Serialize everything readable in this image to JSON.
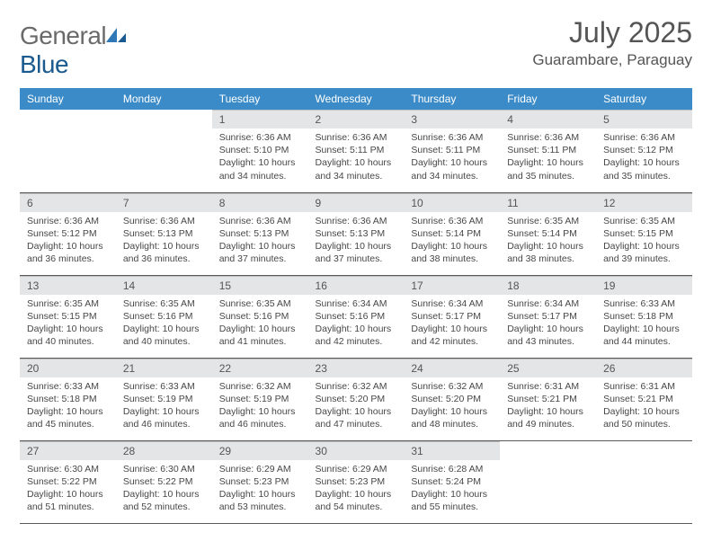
{
  "logo": {
    "word1": "General",
    "word2": "Blue"
  },
  "title": "July 2025",
  "location": "Guarambare, Paraguay",
  "weekdays": [
    "Sunday",
    "Monday",
    "Tuesday",
    "Wednesday",
    "Thursday",
    "Friday",
    "Saturday"
  ],
  "colors": {
    "header_bg": "#3b8bc8",
    "header_text": "#ffffff",
    "daynum_bg": "#e3e5e7",
    "logo_gray": "#6a6a6a",
    "logo_blue": "#1b5a8f",
    "body_text": "#474747"
  },
  "days": [
    {
      "n": "",
      "sr": "",
      "ss": "",
      "dl": ""
    },
    {
      "n": "",
      "sr": "",
      "ss": "",
      "dl": ""
    },
    {
      "n": "1",
      "sr": "Sunrise: 6:36 AM",
      "ss": "Sunset: 5:10 PM",
      "dl": "Daylight: 10 hours and 34 minutes."
    },
    {
      "n": "2",
      "sr": "Sunrise: 6:36 AM",
      "ss": "Sunset: 5:11 PM",
      "dl": "Daylight: 10 hours and 34 minutes."
    },
    {
      "n": "3",
      "sr": "Sunrise: 6:36 AM",
      "ss": "Sunset: 5:11 PM",
      "dl": "Daylight: 10 hours and 34 minutes."
    },
    {
      "n": "4",
      "sr": "Sunrise: 6:36 AM",
      "ss": "Sunset: 5:11 PM",
      "dl": "Daylight: 10 hours and 35 minutes."
    },
    {
      "n": "5",
      "sr": "Sunrise: 6:36 AM",
      "ss": "Sunset: 5:12 PM",
      "dl": "Daylight: 10 hours and 35 minutes."
    },
    {
      "n": "6",
      "sr": "Sunrise: 6:36 AM",
      "ss": "Sunset: 5:12 PM",
      "dl": "Daylight: 10 hours and 36 minutes."
    },
    {
      "n": "7",
      "sr": "Sunrise: 6:36 AM",
      "ss": "Sunset: 5:13 PM",
      "dl": "Daylight: 10 hours and 36 minutes."
    },
    {
      "n": "8",
      "sr": "Sunrise: 6:36 AM",
      "ss": "Sunset: 5:13 PM",
      "dl": "Daylight: 10 hours and 37 minutes."
    },
    {
      "n": "9",
      "sr": "Sunrise: 6:36 AM",
      "ss": "Sunset: 5:13 PM",
      "dl": "Daylight: 10 hours and 37 minutes."
    },
    {
      "n": "10",
      "sr": "Sunrise: 6:36 AM",
      "ss": "Sunset: 5:14 PM",
      "dl": "Daylight: 10 hours and 38 minutes."
    },
    {
      "n": "11",
      "sr": "Sunrise: 6:35 AM",
      "ss": "Sunset: 5:14 PM",
      "dl": "Daylight: 10 hours and 38 minutes."
    },
    {
      "n": "12",
      "sr": "Sunrise: 6:35 AM",
      "ss": "Sunset: 5:15 PM",
      "dl": "Daylight: 10 hours and 39 minutes."
    },
    {
      "n": "13",
      "sr": "Sunrise: 6:35 AM",
      "ss": "Sunset: 5:15 PM",
      "dl": "Daylight: 10 hours and 40 minutes."
    },
    {
      "n": "14",
      "sr": "Sunrise: 6:35 AM",
      "ss": "Sunset: 5:16 PM",
      "dl": "Daylight: 10 hours and 40 minutes."
    },
    {
      "n": "15",
      "sr": "Sunrise: 6:35 AM",
      "ss": "Sunset: 5:16 PM",
      "dl": "Daylight: 10 hours and 41 minutes."
    },
    {
      "n": "16",
      "sr": "Sunrise: 6:34 AM",
      "ss": "Sunset: 5:16 PM",
      "dl": "Daylight: 10 hours and 42 minutes."
    },
    {
      "n": "17",
      "sr": "Sunrise: 6:34 AM",
      "ss": "Sunset: 5:17 PM",
      "dl": "Daylight: 10 hours and 42 minutes."
    },
    {
      "n": "18",
      "sr": "Sunrise: 6:34 AM",
      "ss": "Sunset: 5:17 PM",
      "dl": "Daylight: 10 hours and 43 minutes."
    },
    {
      "n": "19",
      "sr": "Sunrise: 6:33 AM",
      "ss": "Sunset: 5:18 PM",
      "dl": "Daylight: 10 hours and 44 minutes."
    },
    {
      "n": "20",
      "sr": "Sunrise: 6:33 AM",
      "ss": "Sunset: 5:18 PM",
      "dl": "Daylight: 10 hours and 45 minutes."
    },
    {
      "n": "21",
      "sr": "Sunrise: 6:33 AM",
      "ss": "Sunset: 5:19 PM",
      "dl": "Daylight: 10 hours and 46 minutes."
    },
    {
      "n": "22",
      "sr": "Sunrise: 6:32 AM",
      "ss": "Sunset: 5:19 PM",
      "dl": "Daylight: 10 hours and 46 minutes."
    },
    {
      "n": "23",
      "sr": "Sunrise: 6:32 AM",
      "ss": "Sunset: 5:20 PM",
      "dl": "Daylight: 10 hours and 47 minutes."
    },
    {
      "n": "24",
      "sr": "Sunrise: 6:32 AM",
      "ss": "Sunset: 5:20 PM",
      "dl": "Daylight: 10 hours and 48 minutes."
    },
    {
      "n": "25",
      "sr": "Sunrise: 6:31 AM",
      "ss": "Sunset: 5:21 PM",
      "dl": "Daylight: 10 hours and 49 minutes."
    },
    {
      "n": "26",
      "sr": "Sunrise: 6:31 AM",
      "ss": "Sunset: 5:21 PM",
      "dl": "Daylight: 10 hours and 50 minutes."
    },
    {
      "n": "27",
      "sr": "Sunrise: 6:30 AM",
      "ss": "Sunset: 5:22 PM",
      "dl": "Daylight: 10 hours and 51 minutes."
    },
    {
      "n": "28",
      "sr": "Sunrise: 6:30 AM",
      "ss": "Sunset: 5:22 PM",
      "dl": "Daylight: 10 hours and 52 minutes."
    },
    {
      "n": "29",
      "sr": "Sunrise: 6:29 AM",
      "ss": "Sunset: 5:23 PM",
      "dl": "Daylight: 10 hours and 53 minutes."
    },
    {
      "n": "30",
      "sr": "Sunrise: 6:29 AM",
      "ss": "Sunset: 5:23 PM",
      "dl": "Daylight: 10 hours and 54 minutes."
    },
    {
      "n": "31",
      "sr": "Sunrise: 6:28 AM",
      "ss": "Sunset: 5:24 PM",
      "dl": "Daylight: 10 hours and 55 minutes."
    },
    {
      "n": "",
      "sr": "",
      "ss": "",
      "dl": ""
    },
    {
      "n": "",
      "sr": "",
      "ss": "",
      "dl": ""
    }
  ]
}
